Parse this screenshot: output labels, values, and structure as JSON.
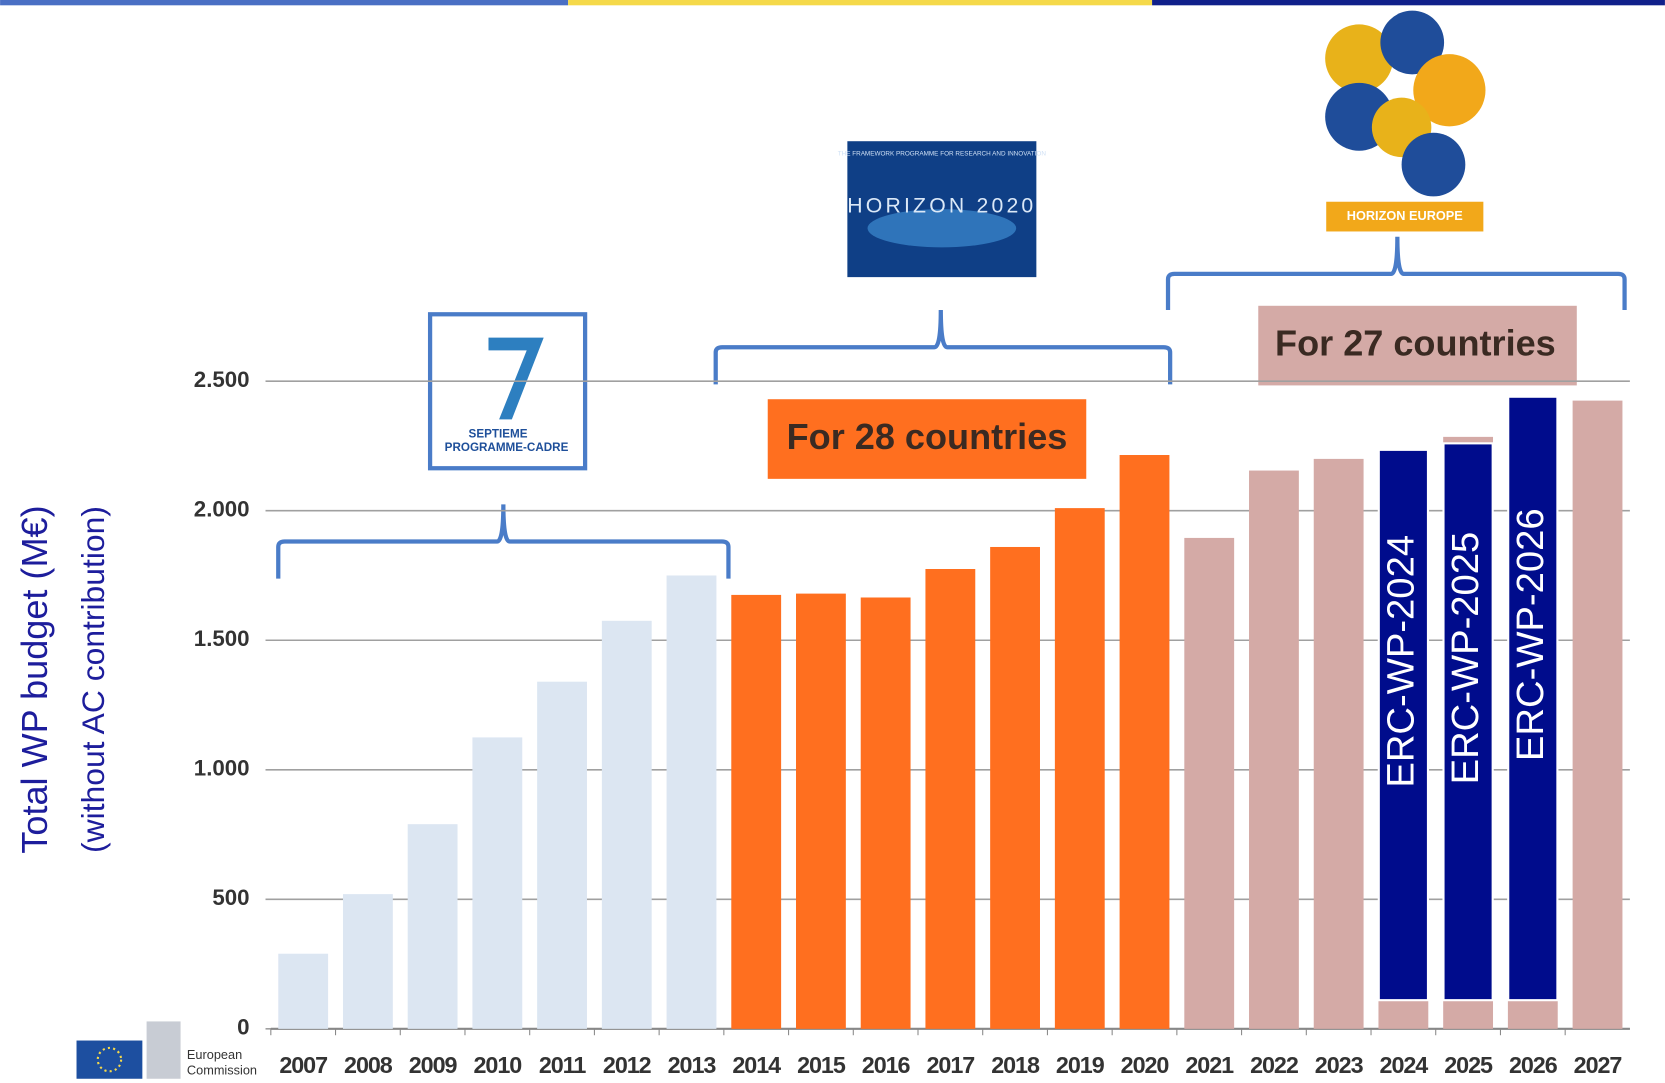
{
  "chart_data": {
    "type": "bar",
    "ylabel": "Total WP budget (M€)",
    "ylabel_sub": "(without AC contribution)",
    "categories": [
      "2007",
      "2008",
      "2009",
      "2010",
      "2011",
      "2012",
      "2013",
      "2014",
      "2015",
      "2016",
      "2017",
      "2018",
      "2019",
      "2020",
      "2021",
      "2022",
      "2023",
      "2024",
      "2025",
      "2026",
      "2027"
    ],
    "values": [
      290,
      520,
      790,
      1125,
      1340,
      1575,
      1750,
      1675,
      1680,
      1665,
      1775,
      1860,
      2010,
      2215,
      1895,
      2155,
      2200,
      2230,
      2285,
      2355,
      2425
    ],
    "colors": [
      "#dce6f2",
      "#dce6f2",
      "#dce6f2",
      "#dce6f2",
      "#dce6f2",
      "#dce6f2",
      "#dce6f2",
      "#ff6f1f",
      "#ff6f1f",
      "#ff6f1f",
      "#ff6f1f",
      "#ff6f1f",
      "#ff6f1f",
      "#ff6f1f",
      "#d4aaa6",
      "#d4aaa6",
      "#d4aaa6",
      "#d4aaa6",
      "#d4aaa6",
      "#d4aaa6",
      "#d4aaa6"
    ],
    "overlay": {
      "color": "#000c8c",
      "labels": [
        null,
        null,
        null,
        null,
        null,
        null,
        null,
        null,
        null,
        null,
        null,
        null,
        null,
        null,
        null,
        null,
        null,
        "ERC-WP-2024",
        "ERC-WP-2025",
        "ERC-WP-2026",
        null
      ],
      "values": [
        null,
        null,
        null,
        null,
        null,
        null,
        null,
        null,
        null,
        null,
        null,
        null,
        null,
        null,
        null,
        null,
        null,
        2235,
        2260,
        2440,
        null
      ]
    },
    "ylim": [
      0,
      2500
    ],
    "yticks": [
      0,
      500,
      {
        "value": 1000,
        "label": "1.000"
      },
      {
        "value": 1500,
        "label": "1.500"
      },
      {
        "value": 2000,
        "label": "2.000"
      },
      {
        "value": 2500,
        "label": "2.500"
      }
    ],
    "grid": true,
    "annotations": [
      "For 28 countries",
      "For 27 countries"
    ],
    "logos": {
      "fp7": [
        "SEPTIEME",
        "PROGRAMME-CADRE"
      ],
      "h2020_top": "THE FRAMEWORK PROGRAMME FOR RESEARCH AND INNOVATION",
      "h2020": "HORIZON 2020",
      "horizon_europe": "HORIZON EUROPE",
      "ec": [
        "European",
        "Commission"
      ]
    }
  }
}
